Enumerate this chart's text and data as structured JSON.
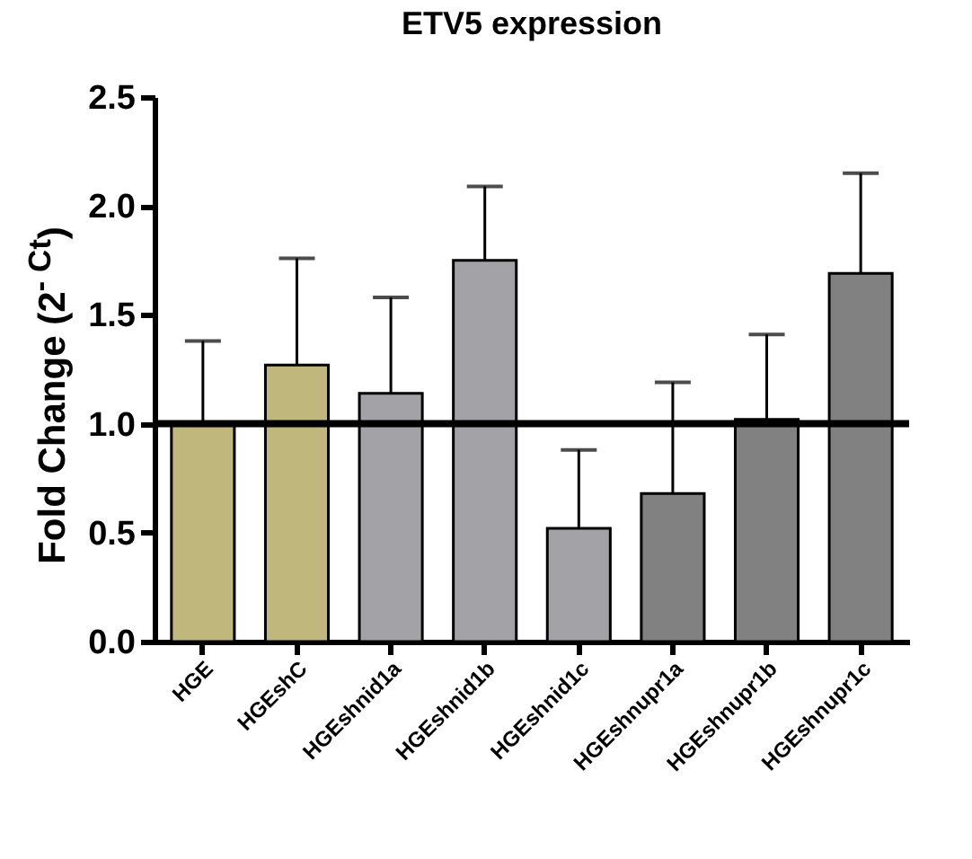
{
  "chart_data": {
    "type": "bar",
    "title": "ETV5 expression",
    "ylabel": "Fold Change (2$^{- Ct}$)",
    "categories": [
      "HGE",
      "HGEshC",
      "HGEshnid1a",
      "HGEshnid1b",
      "HGEshnid1c",
      "HGEshnupr1a",
      "HGEshnupr1b",
      "HGEshnupr1c"
    ],
    "values": [
      1.0,
      1.27,
      1.14,
      1.75,
      0.52,
      0.68,
      1.02,
      1.69
    ],
    "colors": [
      "#c0b77d",
      "#c0b77d",
      "#a3a2a6",
      "#a3a2a6",
      "#a3a2a6",
      "#818181",
      "#818181",
      "#818181"
    ],
    "errors": [
      [
        1.0,
        1.38
      ],
      [
        1.27,
        1.76
      ],
      [
        1.14,
        1.58
      ],
      [
        1.75,
        2.09
      ],
      [
        0.52,
        0.88
      ],
      [
        0.68,
        1.19
      ],
      [
        1.02,
        1.41
      ],
      [
        1.69,
        2.15
      ]
    ],
    "ylim": [
      0,
      2.5
    ],
    "yticks": [
      {
        "value": 0,
        "label": "0.0"
      },
      0.5,
      {
        "value": 1,
        "label": "1.0"
      },
      1.5,
      {
        "value": 2,
        "label": "2.0"
      },
      2.5
    ],
    "ref_lines": [
      {
        "axis": "y",
        "value": 1,
        "color": "#000000"
      }
    ],
    "grid": false
  }
}
